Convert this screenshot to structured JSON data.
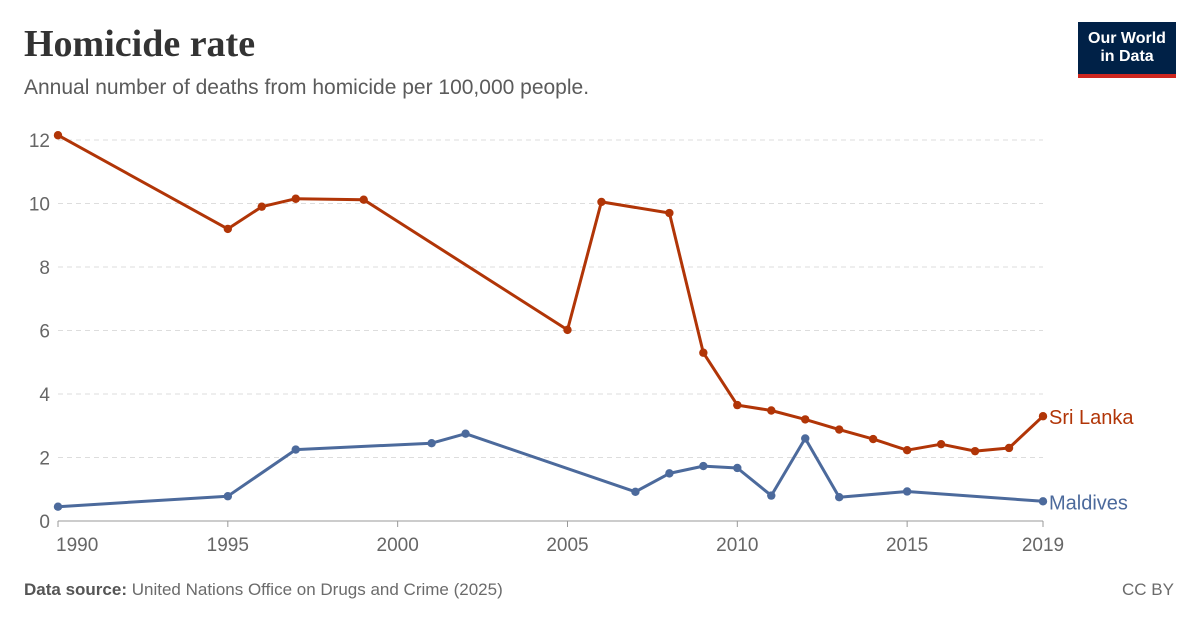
{
  "header": {
    "title": "Homicide rate",
    "subtitle": "Annual number of deaths from homicide per 100,000 people.",
    "logo_line1": "Our World",
    "logo_line2": "in Data"
  },
  "footer": {
    "source_label": "Data source:",
    "source_text": "United Nations Office on Drugs and Crime (2025)",
    "license": "CC BY"
  },
  "colors": {
    "sri_lanka": "#b13507",
    "maldives": "#4c6a9c",
    "logo_bg": "#002147",
    "logo_accent": "#ce261e"
  },
  "chart_data": {
    "type": "line",
    "title": "Homicide rate",
    "subtitle": "Annual number of deaths from homicide per 100,000 people.",
    "xlim": [
      1990,
      2019
    ],
    "ylim": [
      0,
      12
    ],
    "x_ticks": [
      "1990",
      "1995",
      "2000",
      "2005",
      "2010",
      "2015",
      "2019"
    ],
    "y_ticks": [
      "0",
      "2",
      "4",
      "6",
      "8",
      "10",
      "12"
    ],
    "grid": "horizontal-dashed",
    "legend": "inline-right",
    "series": [
      {
        "name": "Sri Lanka",
        "color": "#b13507",
        "points": [
          [
            1990,
            12.15
          ],
          [
            1995,
            9.2
          ],
          [
            1996,
            9.9
          ],
          [
            1997,
            10.15
          ],
          [
            1999,
            10.12
          ],
          [
            2005,
            6.02
          ],
          [
            2006,
            10.05
          ],
          [
            2008,
            9.7
          ],
          [
            2009,
            5.3
          ],
          [
            2010,
            3.65
          ],
          [
            2011,
            3.48
          ],
          [
            2012,
            3.2
          ],
          [
            2013,
            2.88
          ],
          [
            2014,
            2.58
          ],
          [
            2015,
            2.23
          ],
          [
            2016,
            2.42
          ],
          [
            2017,
            2.2
          ],
          [
            2018,
            2.3
          ],
          [
            2019,
            3.3
          ]
        ]
      },
      {
        "name": "Maldives",
        "color": "#4c6a9c",
        "points": [
          [
            1990,
            0.45
          ],
          [
            1995,
            0.78
          ],
          [
            1997,
            2.25
          ],
          [
            2001,
            2.45
          ],
          [
            2002,
            2.75
          ],
          [
            2007,
            0.92
          ],
          [
            2008,
            1.5
          ],
          [
            2009,
            1.73
          ],
          [
            2010,
            1.67
          ],
          [
            2011,
            0.8
          ],
          [
            2012,
            2.6
          ],
          [
            2013,
            0.75
          ],
          [
            2015,
            0.93
          ],
          [
            2019,
            0.62
          ]
        ]
      }
    ]
  }
}
